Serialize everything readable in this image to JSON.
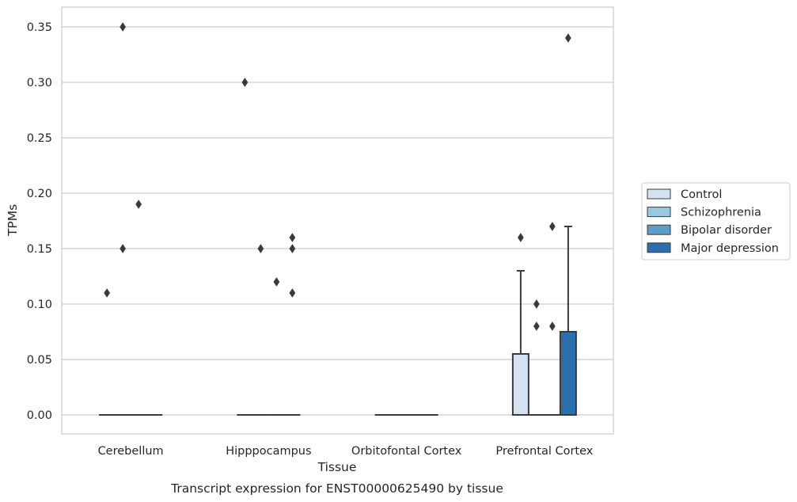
{
  "caption": "Transcript expression for ENST00000625490 by tissue",
  "chart_data": {
    "type": "box",
    "xlabel": "Tissue",
    "ylabel": "TPMs",
    "ylim": [
      -0.017,
      0.367
    ],
    "yticks": [
      "0.00",
      "0.05",
      "0.10",
      "0.15",
      "0.20",
      "0.25",
      "0.30",
      "0.35"
    ],
    "grid": true,
    "legend_position": "right",
    "categories": [
      "Cerebellum",
      "Hipppocampus",
      "Orbitofontal Cortex",
      "Prefrontal Cortex"
    ],
    "series": [
      {
        "name": "Control",
        "color": "#d3e3f3",
        "boxes": [
          {
            "q1": 0,
            "median": 0,
            "q3": 0,
            "whisker_low": 0,
            "whisker_high": 0,
            "outliers": [
              0.11
            ]
          },
          {
            "q1": 0,
            "median": 0,
            "q3": 0,
            "whisker_low": 0,
            "whisker_high": 0,
            "outliers": [
              0.3
            ]
          },
          {
            "q1": 0,
            "median": 0,
            "q3": 0,
            "whisker_low": 0,
            "whisker_high": 0,
            "outliers": []
          },
          {
            "q1": 0,
            "median": 0,
            "q3": 0.055,
            "whisker_low": 0,
            "whisker_high": 0.13,
            "outliers": [
              0.16
            ]
          }
        ]
      },
      {
        "name": "Schizophrenia",
        "color": "#9ac8e0",
        "boxes": [
          {
            "q1": 0,
            "median": 0,
            "q3": 0,
            "whisker_low": 0,
            "whisker_high": 0,
            "outliers": [
              0.35,
              0.15
            ]
          },
          {
            "q1": 0,
            "median": 0,
            "q3": 0,
            "whisker_low": 0,
            "whisker_high": 0,
            "outliers": [
              0.15
            ]
          },
          {
            "q1": 0,
            "median": 0,
            "q3": 0,
            "whisker_low": 0,
            "whisker_high": 0,
            "outliers": []
          },
          {
            "q1": 0,
            "median": 0,
            "q3": 0,
            "whisker_low": 0,
            "whisker_high": 0,
            "outliers": [
              0.1,
              0.08
            ]
          }
        ]
      },
      {
        "name": "Bipolar disorder",
        "color": "#5a9dc9",
        "boxes": [
          {
            "q1": 0,
            "median": 0,
            "q3": 0,
            "whisker_low": 0,
            "whisker_high": 0,
            "outliers": [
              0.19
            ]
          },
          {
            "q1": 0,
            "median": 0,
            "q3": 0,
            "whisker_low": 0,
            "whisker_high": 0,
            "outliers": [
              0.12
            ]
          },
          {
            "q1": 0,
            "median": 0,
            "q3": 0,
            "whisker_low": 0,
            "whisker_high": 0,
            "outliers": []
          },
          {
            "q1": 0,
            "median": 0,
            "q3": 0,
            "whisker_low": 0,
            "whisker_high": 0,
            "outliers": [
              0.17,
              0.08
            ]
          }
        ]
      },
      {
        "name": "Major depression",
        "color": "#2c6fad",
        "boxes": [
          {
            "q1": 0,
            "median": 0,
            "q3": 0,
            "whisker_low": 0,
            "whisker_high": 0,
            "outliers": []
          },
          {
            "q1": 0,
            "median": 0,
            "q3": 0,
            "whisker_low": 0,
            "whisker_high": 0,
            "outliers": [
              0.16,
              0.15,
              0.11
            ]
          },
          {
            "q1": 0,
            "median": 0,
            "q3": 0,
            "whisker_low": 0,
            "whisker_high": 0,
            "outliers": []
          },
          {
            "q1": 0,
            "median": 0,
            "q3": 0.075,
            "whisker_low": 0,
            "whisker_high": 0.17,
            "outliers": [
              0.34
            ]
          }
        ]
      }
    ]
  }
}
